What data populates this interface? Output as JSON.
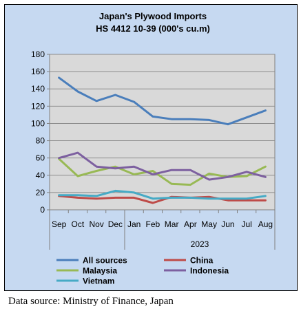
{
  "chart_data": {
    "type": "line",
    "title": "Japan's Plywood Imports",
    "subtitle": "HS 4412 10-39  (000's cu.m)",
    "categories": [
      "Sep",
      "Oct",
      "Nov",
      "Dec",
      "Jan",
      "Feb",
      "Mar",
      "Apr",
      "May",
      "Jun",
      "Jul",
      "Aug"
    ],
    "year_label": "2023",
    "ylim": [
      0,
      180
    ],
    "yticks": [
      0,
      20,
      40,
      60,
      80,
      100,
      120,
      140,
      160,
      180
    ],
    "grid": true,
    "legend_placement": "bottom",
    "series": [
      {
        "name": "All sources",
        "color": "#4a7ebb",
        "values": [
          153,
          137,
          126,
          133,
          125,
          108,
          105,
          105,
          104,
          99,
          107,
          115
        ]
      },
      {
        "name": "China",
        "color": "#be4b48",
        "values": [
          16,
          14,
          13,
          14,
          14,
          8,
          15,
          14,
          15,
          11,
          11,
          11
        ]
      },
      {
        "name": "Malaysia",
        "color": "#98b954",
        "values": [
          59,
          39,
          45,
          50,
          41,
          45,
          30,
          29,
          42,
          38,
          39,
          50
        ]
      },
      {
        "name": "Indonesia",
        "color": "#7d60a0",
        "values": [
          60,
          66,
          50,
          48,
          50,
          41,
          46,
          46,
          35,
          38,
          44,
          38
        ]
      },
      {
        "name": "Vietnam",
        "color": "#46aac5",
        "values": [
          17,
          17,
          16,
          22,
          20,
          13,
          14,
          14,
          13,
          13,
          13,
          16
        ]
      }
    ]
  },
  "source_note": "Data source: Ministry of Finance, Japan"
}
